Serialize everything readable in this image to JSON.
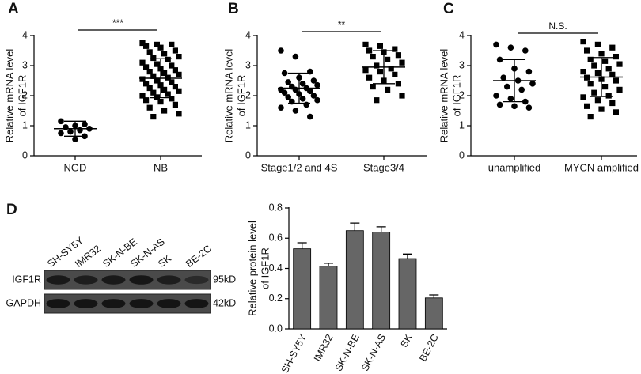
{
  "chart_data": [
    {
      "type": "dot",
      "label": "A",
      "ylabel": [
        "Relative mRNA level",
        "of IGF1R"
      ],
      "ylim": [
        0,
        4
      ],
      "yticks": [
        0,
        1,
        2,
        3,
        4
      ],
      "annotation": "***",
      "groups": [
        {
          "name": "NGD",
          "marker": "circle",
          "values": [
            1.15,
            1.05,
            1.0,
            0.95,
            0.9,
            0.85,
            0.8,
            0.75,
            0.65,
            0.55
          ],
          "mean": 0.9,
          "sd": 0.25
        },
        {
          "name": "NB",
          "marker": "square",
          "values": [
            3.75,
            3.7,
            3.7,
            3.65,
            3.6,
            3.5,
            3.45,
            3.4,
            3.3,
            3.25,
            3.2,
            3.1,
            3.05,
            3.0,
            2.95,
            2.9,
            2.85,
            2.8,
            2.75,
            2.7,
            2.65,
            2.6,
            2.55,
            2.5,
            2.45,
            2.4,
            2.35,
            2.3,
            2.25,
            2.2,
            2.15,
            2.1,
            2.05,
            2.0,
            1.95,
            1.9,
            1.85,
            1.8,
            1.7,
            1.6,
            1.5,
            1.4,
            1.3
          ],
          "mean": 2.58,
          "sd": 0.65
        }
      ]
    },
    {
      "type": "dot",
      "label": "B",
      "ylabel": [
        "Relative mRNA level",
        "of IGF1R"
      ],
      "ylim": [
        0,
        4
      ],
      "yticks": [
        0,
        1,
        2,
        3,
        4
      ],
      "annotation": "**",
      "groups": [
        {
          "name": "Stage1/2 and 4S",
          "marker": "circle",
          "values": [
            3.5,
            3.3,
            2.8,
            2.75,
            2.6,
            2.5,
            2.45,
            2.4,
            2.35,
            2.3,
            2.25,
            2.2,
            2.2,
            2.15,
            2.1,
            2.05,
            2.0,
            1.95,
            1.9,
            1.85,
            1.8,
            1.7,
            1.6,
            1.5,
            1.3
          ],
          "mean": 2.25,
          "sd": 0.5
        },
        {
          "name": "Stage3/4",
          "marker": "square",
          "values": [
            3.7,
            3.65,
            3.55,
            3.5,
            3.45,
            3.35,
            3.3,
            3.2,
            3.1,
            3.0,
            2.9,
            2.85,
            2.8,
            2.7,
            2.6,
            2.5,
            2.4,
            2.3,
            2.2,
            2.0,
            1.85
          ],
          "mean": 2.95,
          "sd": 0.55
        }
      ]
    },
    {
      "type": "dot",
      "label": "C",
      "ylabel": [
        "Relative mRNA level",
        "of IGF1R"
      ],
      "ylim": [
        0,
        4
      ],
      "yticks": [
        0,
        1,
        2,
        3,
        4
      ],
      "annotation": "N.S.",
      "groups": [
        {
          "name": "unamplified",
          "marker": "circle",
          "values": [
            3.7,
            3.6,
            3.5,
            3.2,
            2.9,
            2.8,
            2.6,
            2.5,
            2.4,
            2.3,
            2.2,
            2.0,
            1.9,
            1.8,
            1.7,
            1.65,
            1.6
          ],
          "mean": 2.5,
          "sd": 0.7
        },
        {
          "name": "MYCN amplified",
          "marker": "square",
          "values": [
            3.8,
            3.7,
            3.6,
            3.5,
            3.4,
            3.3,
            3.2,
            3.15,
            3.05,
            3.0,
            2.9,
            2.8,
            2.75,
            2.7,
            2.6,
            2.55,
            2.5,
            2.4,
            2.3,
            2.2,
            2.1,
            2.0,
            1.95,
            1.85,
            1.75,
            1.65,
            1.55,
            1.45,
            1.3
          ],
          "mean": 2.62,
          "sd": 0.65
        }
      ]
    },
    {
      "type": "bar",
      "label": "D",
      "ylabel": [
        "Relative protein level",
        "of IGF1R"
      ],
      "ylim": [
        0,
        0.8
      ],
      "yticks": [
        {
          "value": 0,
          "label": "0.0"
        },
        0.2,
        0.4,
        0.6,
        0.8
      ],
      "categories": [
        "SH-SY5Y",
        "IMR32",
        "SK-N-BE",
        "SK-N-AS",
        "SK",
        "BE-2C"
      ],
      "values": [
        0.53,
        0.415,
        0.65,
        0.64,
        0.465,
        0.205
      ],
      "errors": [
        0.04,
        0.02,
        0.05,
        0.035,
        0.03,
        0.02
      ],
      "color": "#666666"
    }
  ],
  "blot": {
    "lanes": [
      "SH-SY5Y",
      "IMR32",
      "SK-N-BE",
      "SK-N-AS",
      "SK",
      "BE-2C"
    ],
    "rows": [
      {
        "protein": "IGF1R",
        "size": "95kD"
      },
      {
        "protein": "GAPDH",
        "size": "42kD"
      }
    ]
  }
}
